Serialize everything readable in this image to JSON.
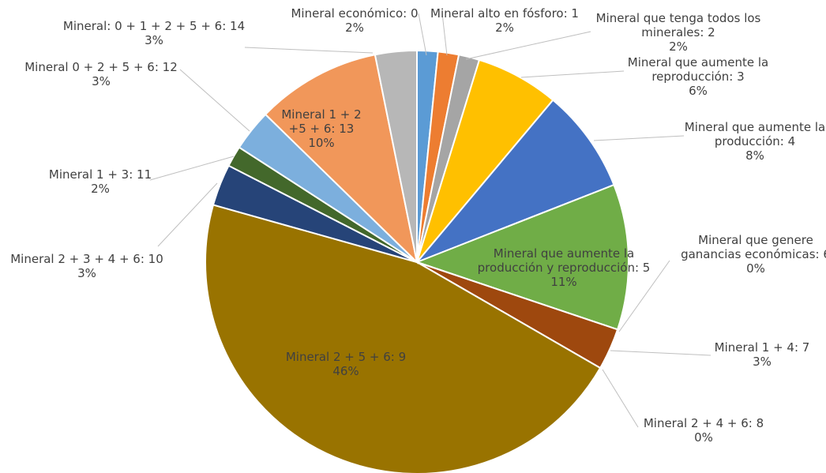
{
  "chart_data": {
    "type": "pie",
    "title": "",
    "slices": [
      {
        "label": [
          "Mineral económico: 0"
        ],
        "pct": "2%",
        "value": 1.6,
        "color": "#5b9bd5"
      },
      {
        "label": [
          "Mineral alto en fósforo: 1"
        ],
        "pct": "2%",
        "value": 1.6,
        "color": "#ed7d31"
      },
      {
        "label": [
          "Mineral que tenga todos los",
          "minerales: 2"
        ],
        "pct": "2%",
        "value": 1.6,
        "color": "#a5a5a5"
      },
      {
        "label": [
          "Mineral que aumente la",
          "reproducción: 3"
        ],
        "pct": "6%",
        "value": 6.4,
        "color": "#ffc000"
      },
      {
        "label": [
          "Mineral que aumente la",
          "producción: 4"
        ],
        "pct": "8%",
        "value": 8.0,
        "color": "#4472c4"
      },
      {
        "label": [
          "Mineral que aumente la",
          "producción y reproducción: 5"
        ],
        "pct": "11%",
        "value": 11.2,
        "color": "#70ad47"
      },
      {
        "label": [
          "Mineral que genere",
          "ganancias económicas: 6"
        ],
        "pct": "0%",
        "value": 0.0,
        "color": "#264478"
      },
      {
        "label": [
          "Mineral 1 + 4: 7"
        ],
        "pct": "3%",
        "value": 3.2,
        "color": "#9e480e"
      },
      {
        "label": [
          "Mineral 2 + 4 + 6: 8"
        ],
        "pct": "0%",
        "value": 0.0,
        "color": "#636363"
      },
      {
        "label": [
          "Mineral 2 + 5 + 6: 9"
        ],
        "pct": "46%",
        "value": 46.4,
        "color": "#997300"
      },
      {
        "label": [
          "Mineral 2 + 3 + 4 + 6: 10"
        ],
        "pct": "3%",
        "value": 3.2,
        "color": "#264478"
      },
      {
        "label": [
          "Mineral 1 + 3: 11"
        ],
        "pct": "2%",
        "value": 1.6,
        "color": "#43682b"
      },
      {
        "label": [
          "Mineral 0 + 2 + 5 + 6: 12"
        ],
        "pct": "3%",
        "value": 3.2,
        "color": "#7cafdd"
      },
      {
        "label": [
          "Mineral 1 + 2",
          "+5 + 6: 13"
        ],
        "pct": "10%",
        "value": 9.6,
        "color": "#f1975a"
      },
      {
        "label": [
          "Mineral: 0 + 1 + 2 + 5 + 6: 14"
        ],
        "pct": "3%",
        "value": 3.2,
        "color": "#b7b7b7"
      }
    ]
  }
}
